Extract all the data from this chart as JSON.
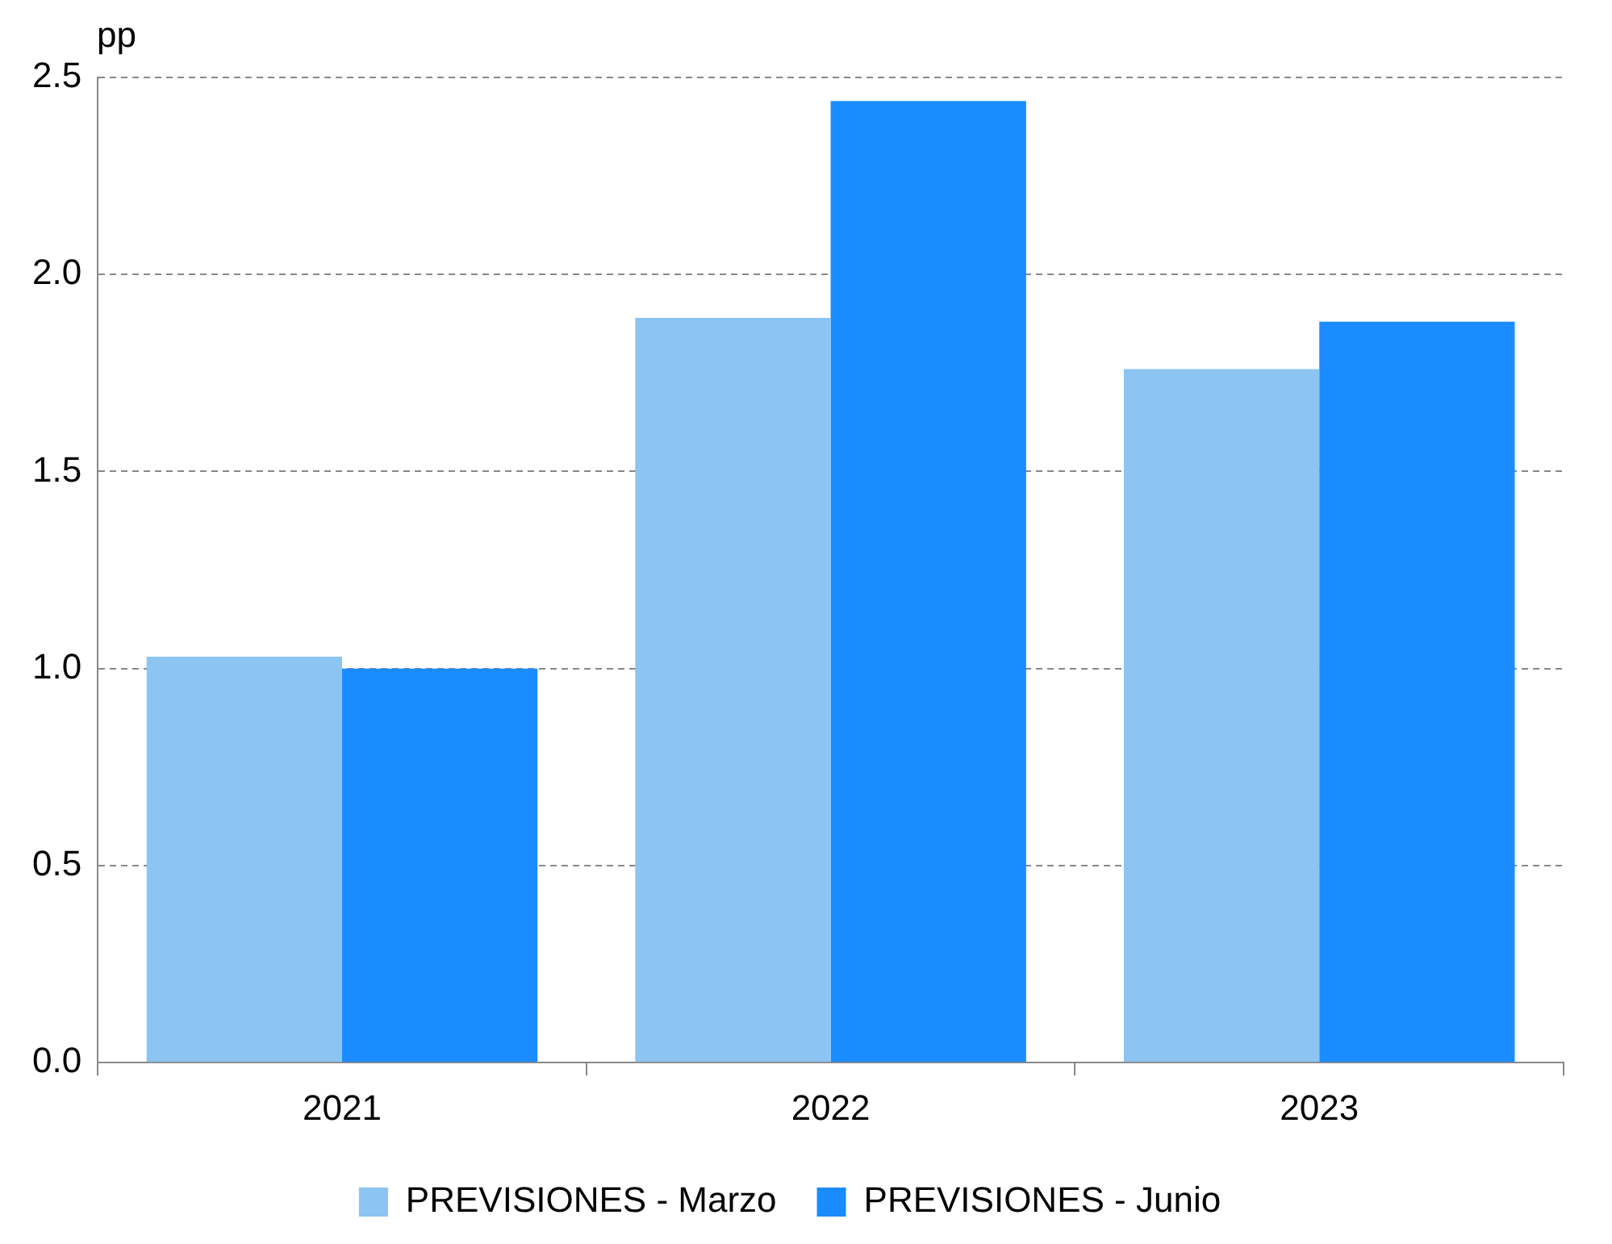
{
  "chart_data": {
    "type": "bar",
    "ylabel": "pp",
    "categories": [
      "2021",
      "2022",
      "2023"
    ],
    "series": [
      {
        "name": "PREVISIONES - Marzo",
        "color": "#8cc4f2",
        "values": [
          1.03,
          1.89,
          1.76
        ]
      },
      {
        "name": "PREVISIONES - Junio",
        "color": "#1a8cff",
        "values": [
          1.0,
          2.44,
          1.88
        ]
      }
    ],
    "ylim": [
      0,
      2.5
    ],
    "yticks": [
      {
        "value": 0,
        "label": "0.0"
      },
      {
        "value": 0.5,
        "label": "0.5"
      },
      {
        "value": 1,
        "label": "1.0"
      },
      {
        "value": 1.5,
        "label": "1.5"
      },
      {
        "value": 2,
        "label": "2.0"
      },
      {
        "value": 2.5,
        "label": "2.5"
      }
    ],
    "grid": "y",
    "legend": "bottom"
  }
}
